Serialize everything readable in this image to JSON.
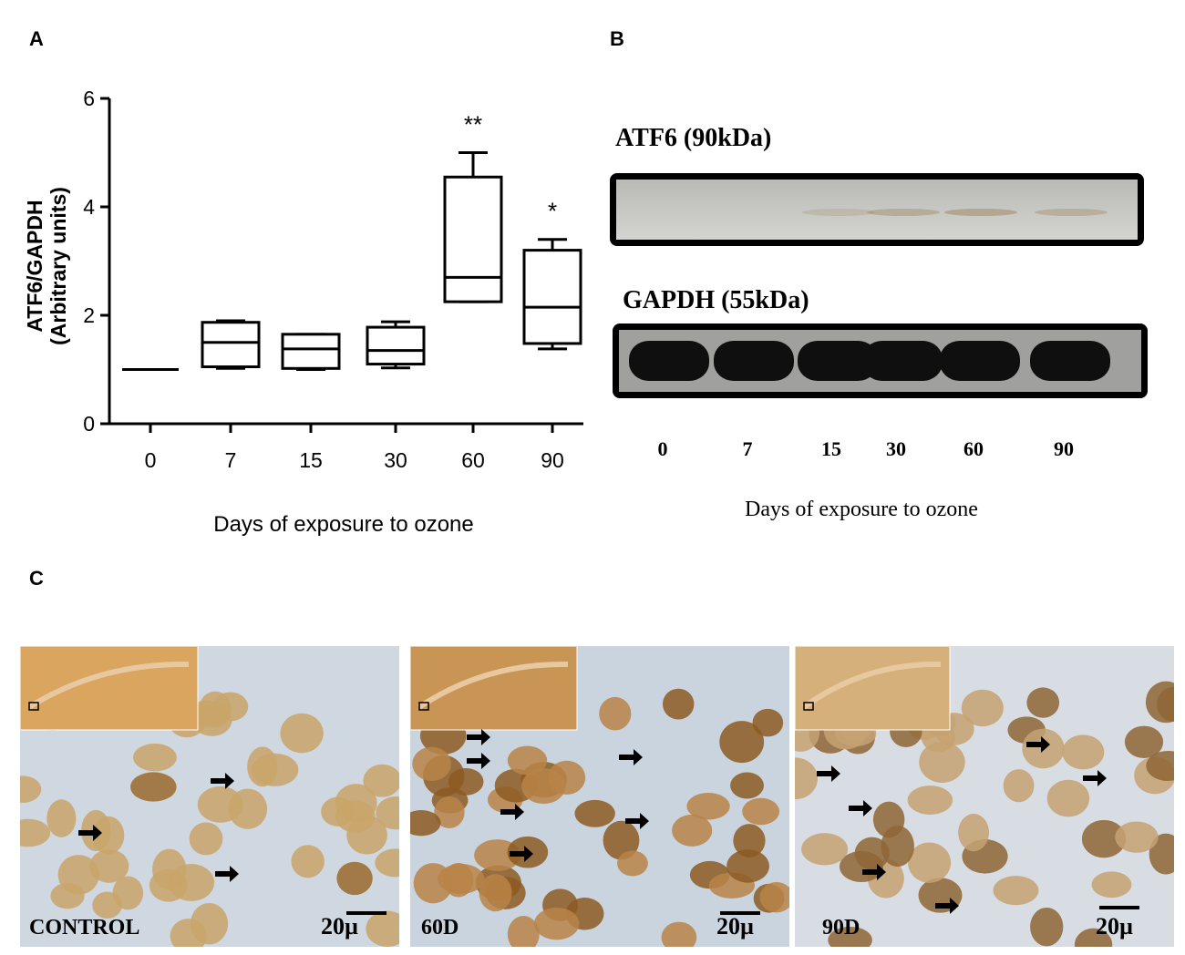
{
  "panels": {
    "a_label": "A",
    "b_label": "B",
    "c_label": "C"
  },
  "chart_data": {
    "type": "box",
    "categories": [
      "0",
      "7",
      "15",
      "30",
      "60",
      "90"
    ],
    "ylabel_line1": "ATF6/GAPDH",
    "ylabel_line2": "(Arbitrary units)",
    "xlabel": "Days of exposure to ozone",
    "ylim": [
      0,
      6
    ],
    "yticks": [
      0,
      2,
      4,
      6
    ],
    "boxes": [
      {
        "min": 1.0,
        "q1": 1.0,
        "median": 1.0,
        "q3": 1.0,
        "max": 1.0,
        "annotation": ""
      },
      {
        "min": 1.02,
        "q1": 1.05,
        "median": 1.5,
        "q3": 1.87,
        "max": 1.9,
        "annotation": ""
      },
      {
        "min": 1.0,
        "q1": 1.02,
        "median": 1.38,
        "q3": 1.65,
        "max": 1.65,
        "annotation": ""
      },
      {
        "min": 1.03,
        "q1": 1.1,
        "median": 1.35,
        "q3": 1.78,
        "max": 1.88,
        "annotation": ""
      },
      {
        "min": 2.25,
        "q1": 2.25,
        "median": 2.7,
        "q3": 4.55,
        "max": 5.0,
        "annotation": "**"
      },
      {
        "min": 1.38,
        "q1": 1.48,
        "median": 2.15,
        "q3": 3.2,
        "max": 3.4,
        "annotation": "*"
      }
    ]
  },
  "blot": {
    "atf6_title": "ATF6 (90kDa)",
    "gapdh_title": "GAPDH (55kDa)",
    "lanes": [
      "0",
      "7",
      "15",
      "30",
      "60",
      "90"
    ],
    "xlabel": "Days of exposure to ozone",
    "atf6_band_intensity": [
      0.0,
      0.0,
      0.25,
      0.45,
      0.55,
      0.4
    ]
  },
  "micrographs": [
    {
      "label": "CONTROL",
      "scale": "20µ"
    },
    {
      "label": "60D",
      "scale": "20µ"
    },
    {
      "label": "90D",
      "scale": "20µ"
    }
  ]
}
